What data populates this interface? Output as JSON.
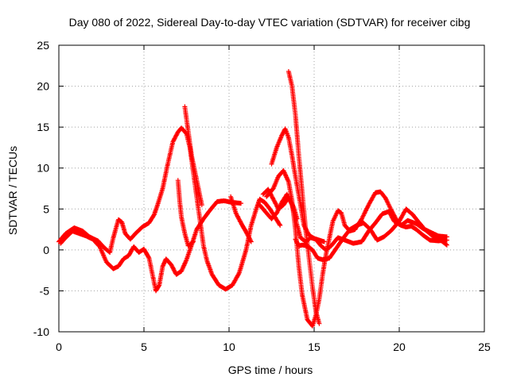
{
  "chart_data": {
    "type": "scatter",
    "title": "Day 080 of 2022, Sidereal Day-to-day VTEC variation (SDTVAR) for receiver cibg",
    "xlabel": "GPS time / hours",
    "ylabel": "SDTVAR / TECUs",
    "xlim": [
      0,
      25
    ],
    "ylim": [
      -10,
      25
    ],
    "x_ticks": [
      0,
      5,
      10,
      15,
      20,
      25
    ],
    "y_ticks": [
      -10,
      -5,
      0,
      5,
      10,
      15,
      20,
      25
    ],
    "grid": true,
    "marker": "+",
    "color": "#ff0000",
    "series": [
      {
        "name": "track-1",
        "points": [
          [
            0.0,
            1.0
          ],
          [
            0.4,
            2.0
          ],
          [
            0.9,
            2.7
          ],
          [
            1.4,
            2.3
          ],
          [
            1.8,
            1.6
          ],
          [
            2.3,
            1.1
          ],
          [
            2.7,
            0.2
          ],
          [
            3.0,
            -0.3
          ],
          [
            3.2,
            1.5
          ],
          [
            3.5,
            3.7
          ],
          [
            3.7,
            3.4
          ],
          [
            3.9,
            2.0
          ],
          [
            4.2,
            1.3
          ],
          [
            4.5,
            2.0
          ],
          [
            4.9,
            2.8
          ],
          [
            5.3,
            3.3
          ],
          [
            5.6,
            4.3
          ],
          [
            5.8,
            5.5
          ],
          [
            6.1,
            7.5
          ],
          [
            6.4,
            10.5
          ],
          [
            6.7,
            13.2
          ],
          [
            7.0,
            14.4
          ],
          [
            7.2,
            14.9
          ],
          [
            7.5,
            14.2
          ],
          [
            7.7,
            12.5
          ],
          [
            7.9,
            9.5
          ],
          [
            8.1,
            6.5
          ],
          [
            8.3,
            3.5
          ],
          [
            8.5,
            0.5
          ],
          [
            8.7,
            -1.3
          ],
          [
            9.0,
            -3.0
          ],
          [
            9.4,
            -4.3
          ],
          [
            9.8,
            -4.8
          ],
          [
            10.2,
            -4.3
          ],
          [
            10.6,
            -2.8
          ],
          [
            11.0,
            0.0
          ],
          [
            11.3,
            3.0
          ],
          [
            11.6,
            5.0
          ],
          [
            11.8,
            6.2
          ],
          [
            12.1,
            5.8
          ],
          [
            12.4,
            5.0
          ],
          [
            12.7,
            4.0
          ],
          [
            13.0,
            3.0
          ]
        ]
      },
      {
        "name": "track-2",
        "points": [
          [
            12.2,
            6.5
          ],
          [
            12.6,
            7.5
          ],
          [
            12.9,
            9.0
          ],
          [
            13.2,
            9.7
          ],
          [
            13.5,
            8.3
          ],
          [
            13.7,
            6.0
          ],
          [
            13.9,
            2.5
          ],
          [
            14.1,
            -2.0
          ],
          [
            14.3,
            -5.5
          ],
          [
            14.6,
            -8.5
          ],
          [
            14.9,
            -9.3
          ],
          [
            15.1,
            -8.0
          ],
          [
            15.3,
            -6.0
          ],
          [
            15.5,
            -3.0
          ],
          [
            15.7,
            -0.5
          ],
          [
            15.9,
            1.5
          ],
          [
            16.1,
            3.5
          ],
          [
            16.4,
            4.8
          ],
          [
            16.6,
            4.5
          ],
          [
            16.8,
            3.0
          ],
          [
            17.1,
            2.3
          ],
          [
            17.4,
            2.5
          ],
          [
            17.8,
            3.8
          ],
          [
            18.2,
            5.5
          ],
          [
            18.6,
            7.0
          ],
          [
            18.9,
            7.1
          ],
          [
            19.2,
            6.3
          ],
          [
            19.5,
            5.0
          ],
          [
            19.8,
            3.8
          ],
          [
            20.1,
            3.0
          ],
          [
            20.4,
            2.8
          ],
          [
            20.7,
            2.9
          ],
          [
            21.0,
            2.5
          ],
          [
            21.4,
            1.8
          ],
          [
            21.8,
            1.2
          ],
          [
            22.3,
            1.1
          ],
          [
            22.8,
            1.2
          ]
        ]
      },
      {
        "name": "track-3",
        "points": [
          [
            0.1,
            0.8
          ],
          [
            0.4,
            1.5
          ],
          [
            0.8,
            2.3
          ],
          [
            1.2,
            2.0
          ],
          [
            1.6,
            1.7
          ],
          [
            2.0,
            1.3
          ],
          [
            2.4,
            0.4
          ],
          [
            2.8,
            -1.5
          ],
          [
            3.2,
            -2.3
          ],
          [
            3.5,
            -2.0
          ],
          [
            3.8,
            -1.1
          ],
          [
            4.1,
            -0.7
          ],
          [
            4.4,
            0.4
          ],
          [
            4.7,
            -0.3
          ],
          [
            5.0,
            0.1
          ],
          [
            5.3,
            -1.0
          ],
          [
            5.5,
            -3.0
          ],
          [
            5.7,
            -5.0
          ],
          [
            5.9,
            -4.3
          ],
          [
            6.1,
            -2.0
          ],
          [
            6.3,
            -1.1
          ],
          [
            6.6,
            -1.8
          ],
          [
            6.9,
            -3.0
          ],
          [
            7.2,
            -2.6
          ],
          [
            7.5,
            -1.2
          ],
          [
            7.8,
            0.6
          ],
          [
            8.1,
            2.5
          ],
          [
            8.5,
            3.8
          ],
          [
            8.9,
            4.9
          ],
          [
            9.3,
            5.9
          ],
          [
            9.7,
            6.0
          ],
          [
            10.2,
            5.8
          ],
          [
            10.7,
            5.7
          ]
        ]
      },
      {
        "name": "track-4",
        "points": [
          [
            7.4,
            17.5
          ],
          [
            7.6,
            14.5
          ],
          [
            7.8,
            11.5
          ],
          [
            8.0,
            9.5
          ],
          [
            8.2,
            7.5
          ],
          [
            8.4,
            5.5
          ]
        ]
      },
      {
        "name": "track-5",
        "points": [
          [
            7.0,
            8.5
          ],
          [
            7.1,
            6.0
          ],
          [
            7.2,
            4.0
          ],
          [
            7.4,
            2.0
          ],
          [
            7.6,
            0.5
          ],
          [
            7.9,
            1.0
          ]
        ]
      },
      {
        "name": "track-6",
        "points": [
          [
            10.1,
            6.5
          ],
          [
            10.4,
            4.5
          ],
          [
            10.7,
            3.3
          ],
          [
            11.0,
            2.2
          ],
          [
            11.3,
            1.0
          ]
        ]
      },
      {
        "name": "track-7",
        "points": [
          [
            11.8,
            5.5
          ],
          [
            12.2,
            4.5
          ],
          [
            12.5,
            3.8
          ],
          [
            12.8,
            4.5
          ],
          [
            13.1,
            5.8
          ],
          [
            13.4,
            6.8
          ],
          [
            13.7,
            5.5
          ],
          [
            14.0,
            3.0
          ],
          [
            14.2,
            1.5
          ],
          [
            14.5,
            1.0
          ],
          [
            14.8,
            1.5
          ],
          [
            15.1,
            1.3
          ],
          [
            15.4,
            0.5
          ],
          [
            15.7,
            0.0
          ],
          [
            16.0,
            0.5
          ],
          [
            16.4,
            1.5
          ],
          [
            16.8,
            1.2
          ],
          [
            17.3,
            0.8
          ],
          [
            17.8,
            1.0
          ],
          [
            18.2,
            2.3
          ],
          [
            18.6,
            3.3
          ],
          [
            19.0,
            4.4
          ],
          [
            19.4,
            4.7
          ],
          [
            19.7,
            3.5
          ],
          [
            20.1,
            3.0
          ],
          [
            20.5,
            3.6
          ],
          [
            21.0,
            3.2
          ],
          [
            21.4,
            2.6
          ],
          [
            21.8,
            2.2
          ],
          [
            22.3,
            1.7
          ],
          [
            22.8,
            1.6
          ]
        ]
      },
      {
        "name": "track-8",
        "points": [
          [
            12.5,
            10.5
          ],
          [
            12.8,
            12.5
          ],
          [
            13.1,
            14.0
          ],
          [
            13.3,
            14.8
          ],
          [
            13.5,
            13.7
          ],
          [
            13.7,
            11.5
          ],
          [
            13.9,
            9.0
          ],
          [
            14.2,
            5.5
          ],
          [
            14.4,
            3.0
          ],
          [
            14.7,
            1.8
          ],
          [
            15.0,
            1.4
          ],
          [
            15.3,
            1.2
          ],
          [
            15.6,
            1.0
          ]
        ]
      },
      {
        "name": "track-9",
        "points": [
          [
            13.5,
            21.8
          ],
          [
            13.7,
            20.0
          ],
          [
            13.9,
            16.5
          ],
          [
            14.1,
            11.5
          ],
          [
            14.3,
            7.0
          ],
          [
            14.5,
            2.5
          ],
          [
            14.7,
            -1.0
          ],
          [
            14.9,
            -4.5
          ],
          [
            15.1,
            -7.5
          ],
          [
            15.3,
            -9.0
          ]
        ]
      },
      {
        "name": "track-10",
        "points": [
          [
            13.9,
            1.3
          ],
          [
            14.1,
            0.5
          ],
          [
            14.3,
            0.6
          ],
          [
            14.6,
            0.5
          ],
          [
            14.9,
            0.0
          ],
          [
            15.2,
            -1.0
          ],
          [
            15.5,
            -1.2
          ],
          [
            15.9,
            -1.0
          ],
          [
            16.3,
            0.2
          ],
          [
            16.7,
            1.4
          ],
          [
            17.1,
            2.5
          ],
          [
            17.5,
            3.0
          ],
          [
            17.9,
            3.3
          ],
          [
            18.3,
            2.5
          ],
          [
            18.7,
            1.2
          ],
          [
            19.1,
            1.6
          ],
          [
            19.5,
            2.3
          ],
          [
            20.0,
            3.5
          ],
          [
            20.4,
            5.0
          ],
          [
            20.8,
            4.3
          ],
          [
            21.1,
            3.5
          ],
          [
            21.5,
            2.5
          ],
          [
            21.9,
            1.8
          ],
          [
            22.3,
            1.4
          ],
          [
            22.8,
            0.6
          ]
        ]
      },
      {
        "name": "track-11",
        "points": [
          [
            12.0,
            6.8
          ],
          [
            12.3,
            7.4
          ],
          [
            12.6,
            6.2
          ],
          [
            12.9,
            5.0
          ],
          [
            13.2,
            5.5
          ],
          [
            13.5,
            6.4
          ],
          [
            13.8,
            5.2
          ],
          [
            14.0,
            3.8
          ]
        ]
      }
    ]
  }
}
